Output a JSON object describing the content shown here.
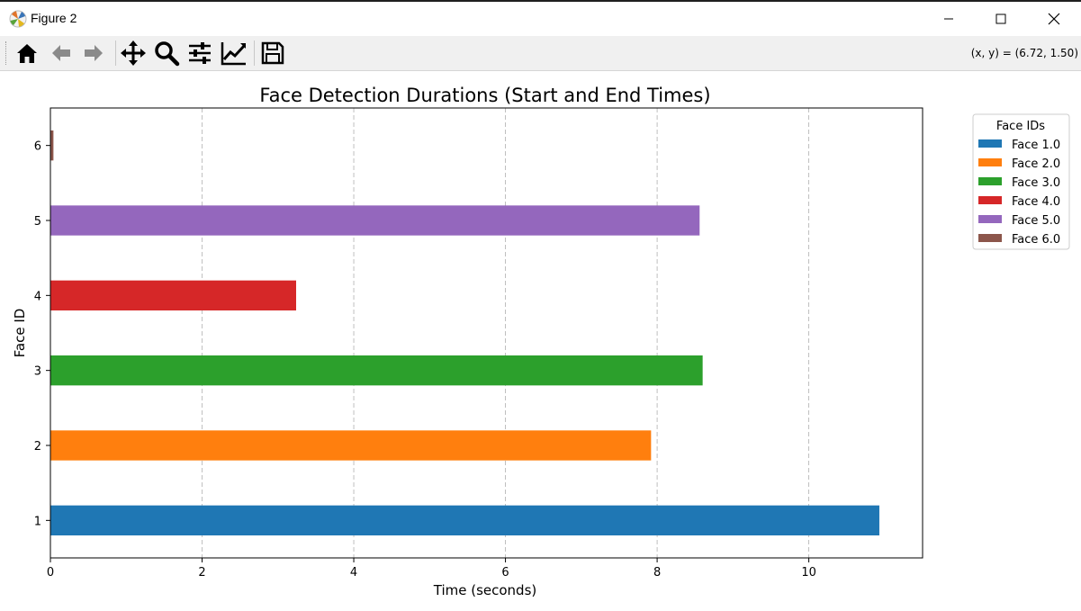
{
  "window": {
    "title": "Figure 2",
    "coords_readout": "(x, y) = (6.72, 1.50)"
  },
  "toolbar": {
    "buttons": [
      "home-icon",
      "back-arrow-icon",
      "forward-arrow-icon",
      "pan-icon",
      "zoom-icon",
      "configure-subplots-icon",
      "edit-axis-icon",
      "save-icon"
    ]
  },
  "colors": {
    "face1": "#1f77b4",
    "face2": "#ff7f0e",
    "face3": "#2ca02c",
    "face4": "#d62728",
    "face5": "#9467bd",
    "face6": "#8c564b"
  },
  "chart_data": {
    "type": "bar",
    "orientation": "horizontal",
    "title": "Face Detection Durations (Start and End Times)",
    "xlabel": "Time (seconds)",
    "ylabel": "Face ID",
    "xlim": [
      0,
      11.5
    ],
    "ylim": [
      0.5,
      6.5
    ],
    "xticks": [
      0,
      2,
      4,
      6,
      8,
      10
    ],
    "yticks": [
      1,
      2,
      3,
      4,
      5,
      6
    ],
    "grid": "x-dashed",
    "legend_title": "Face IDs",
    "legend_position": "outside-top-right",
    "bars": [
      {
        "face_id": 1,
        "label": "Face 1.0",
        "start": 0,
        "end": 10.93,
        "color": "#1f77b4"
      },
      {
        "face_id": 2,
        "label": "Face 2.0",
        "start": 0,
        "end": 7.92,
        "color": "#ff7f0e"
      },
      {
        "face_id": 3,
        "label": "Face 3.0",
        "start": 0,
        "end": 8.6,
        "color": "#2ca02c"
      },
      {
        "face_id": 4,
        "label": "Face 4.0",
        "start": 0,
        "end": 3.24,
        "color": "#d62728"
      },
      {
        "face_id": 5,
        "label": "Face 5.0",
        "start": 0,
        "end": 8.56,
        "color": "#9467bd"
      },
      {
        "face_id": 6,
        "label": "Face 6.0",
        "start": 0,
        "end": 0.04,
        "color": "#8c564b"
      }
    ]
  }
}
